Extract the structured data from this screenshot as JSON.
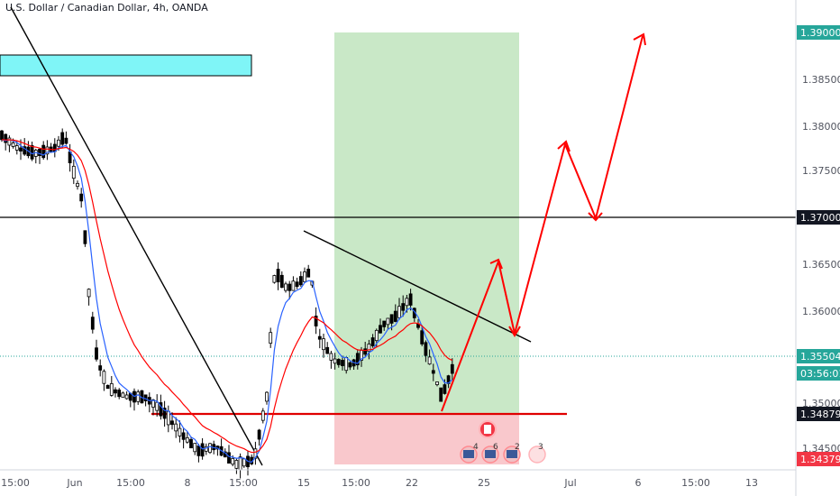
{
  "header": {
    "title": "U.S. Dollar / Canadian Dollar, 4h, OANDA"
  },
  "colors": {
    "green_tag": "#26a69a",
    "black_tag": "#131722",
    "red_tag": "#f23645",
    "ema_red": "#ff0000",
    "ema_blue": "#2962ff",
    "up_candle": "#ffffff",
    "down_candle": "#000000",
    "target_zone": "#c9e8c7",
    "stop_zone": "#f9c8cc",
    "cyan_zone": "#7ff5f7",
    "arrow": "#ff0000"
  },
  "price_axis": {
    "ticks": [
      "1.39000",
      "1.38500",
      "1.38000",
      "1.37500",
      "1.37000",
      "1.36500",
      "1.36000",
      "1.35504",
      "1.35000",
      "1.34879",
      "1.34500",
      "1.34379"
    ],
    "tags": [
      {
        "label": "1.39000",
        "style": "green"
      },
      {
        "label": "1.37000",
        "style": "black"
      },
      {
        "label": "1.35504",
        "style": "green"
      },
      {
        "label": "03:56:01",
        "style": "green"
      },
      {
        "label": "1.34879",
        "style": "black"
      },
      {
        "label": "1.34379",
        "style": "red"
      }
    ]
  },
  "time_axis": {
    "labels": [
      "15:00",
      "Jun",
      "15:00",
      "8",
      "15:00",
      "15",
      "15:00",
      "22",
      "25",
      "Jul",
      "6",
      "15:00",
      "13"
    ]
  },
  "event_badges": [
    "4",
    "6",
    "2",
    "3"
  ],
  "chart_data": {
    "type": "candlestick",
    "title": "U.S. Dollar / Canadian Dollar, 4h, OANDA",
    "ylim": [
      1.343,
      1.3925
    ],
    "x_ticks": [
      "15:00",
      "Jun",
      "15:00",
      "8",
      "15:00",
      "15",
      "15:00",
      "22",
      "25",
      "Jul",
      "6",
      "15:00",
      "13"
    ],
    "horizontal_lines": [
      {
        "price": 1.37,
        "style": "solid-black"
      },
      {
        "price": 1.34879,
        "style": "solid-red"
      },
      {
        "price": 1.35504,
        "style": "dotted-green"
      }
    ],
    "zones": [
      {
        "name": "target",
        "from": 1.34879,
        "to": 1.39
      },
      {
        "name": "stop",
        "from": 1.34379,
        "to": 1.34879
      }
    ],
    "projection_path": [
      1.3488,
      1.3655,
      1.357,
      1.378,
      1.37,
      1.39
    ]
  }
}
